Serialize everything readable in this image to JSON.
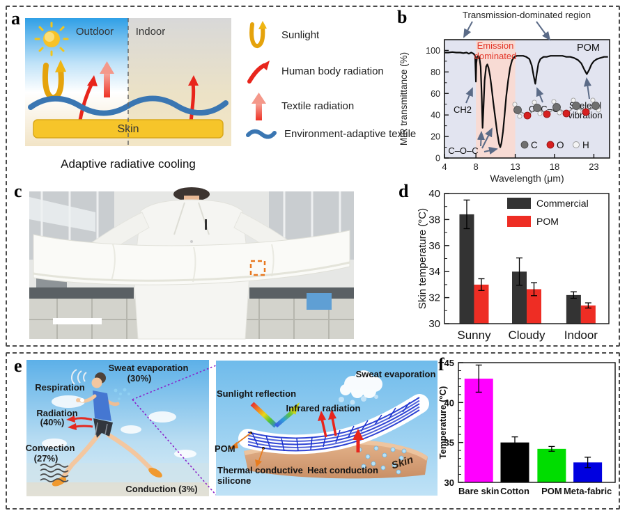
{
  "panels": {
    "a": "a",
    "b": "b",
    "c": "c",
    "d": "d",
    "e": "e",
    "f": "f"
  },
  "panel_a": {
    "outdoor": "Outdoor",
    "indoor": "Indoor",
    "skin": "Skin",
    "caption": "Adaptive radiative cooling",
    "legend": [
      {
        "label": "Sunlight",
        "icon": "sunlight-reflect-arrow"
      },
      {
        "label": "Human body radiation",
        "icon": "red-curved-arrow"
      },
      {
        "label": "Textile radiation",
        "icon": "pink-gradient-arrow"
      },
      {
        "label": "Environment-adaptive textile",
        "icon": "blue-wavy-line"
      }
    ]
  },
  "panel_b": {
    "transmission_region": "Transmission-dominated region",
    "emission_1": "Emission",
    "emission_2": "dominated",
    "pom": "POM",
    "ch2": "CH2",
    "coc": "C–O–C",
    "oco": "O–C–O",
    "skeletal_1": "Skeletal",
    "skeletal_2": "vibration",
    "atoms": {
      "c": "C",
      "o": "O",
      "h": "H"
    }
  },
  "panel_e": {
    "left": {
      "sweat": "Sweat evaporation",
      "sweat_pct": "(30%)",
      "respiration": "Respiration",
      "radiation": "Radiation",
      "radiation_pct": "(40%)",
      "convection": "Convection",
      "convection_pct": "(27%)",
      "conduction": "Conduction (3%)"
    },
    "right": {
      "sunlight_reflection": "Sunlight reflection",
      "infrared_radiation": "Infrared radiation",
      "sweat_evaporation": "Sweat evaporation",
      "pom": "POM",
      "silicone_1": "Thermal conductive",
      "silicone_2": "silicone",
      "heat_conduction": "Heat conduction",
      "skin": "Skin"
    }
  },
  "chart_data": [
    {
      "id": "mir-spectrum",
      "type": "line",
      "xlabel": "Wavelength (μm)",
      "ylabel": "MIR transmittance (%)",
      "xlim": [
        4,
        25
      ],
      "ylim": [
        0,
        110
      ],
      "xticks": [
        4,
        8,
        13,
        18,
        23
      ],
      "yticks": [
        0,
        20,
        40,
        60,
        80,
        100
      ],
      "shaded_region": {
        "x": [
          8,
          13
        ],
        "color": "#f8dbd4",
        "label": "Emission dominated"
      },
      "series": [
        {
          "name": "POM",
          "color": "#0b0b0b",
          "points": [
            [
              4,
              98
            ],
            [
              4.5,
              98
            ],
            [
              5,
              98.5
            ],
            [
              5.5,
              98
            ],
            [
              6,
              98
            ],
            [
              6.4,
              97.5
            ],
            [
              6.8,
              98
            ],
            [
              7.1,
              97
            ],
            [
              7.4,
              98
            ],
            [
              7.7,
              97
            ],
            [
              7.9,
              95
            ],
            [
              8,
              71
            ],
            [
              8.05,
              88
            ],
            [
              8.15,
              94
            ],
            [
              8.3,
              95
            ],
            [
              8.45,
              93
            ],
            [
              8.6,
              85
            ],
            [
              8.75,
              55
            ],
            [
              8.85,
              28
            ],
            [
              8.95,
              45
            ],
            [
              9.1,
              72
            ],
            [
              9.3,
              85
            ],
            [
              9.45,
              87
            ],
            [
              9.6,
              84
            ],
            [
              9.8,
              76
            ],
            [
              10,
              65
            ],
            [
              10.2,
              52
            ],
            [
              10.45,
              38
            ],
            [
              10.7,
              24
            ],
            [
              10.95,
              13
            ],
            [
              11.1,
              10
            ],
            [
              11.25,
              14
            ],
            [
              11.45,
              25
            ],
            [
              11.65,
              40
            ],
            [
              11.85,
              57
            ],
            [
              12.1,
              72
            ],
            [
              12.35,
              84
            ],
            [
              12.6,
              91
            ],
            [
              12.9,
              94
            ],
            [
              13.2,
              95
            ],
            [
              13.6,
              95
            ],
            [
              14,
              95
            ],
            [
              14.4,
              94
            ],
            [
              14.8,
              92
            ],
            [
              15.1,
              86
            ],
            [
              15.35,
              76
            ],
            [
              15.55,
              69
            ],
            [
              15.75,
              79
            ],
            [
              15.95,
              88
            ],
            [
              16.2,
              92
            ],
            [
              16.6,
              94
            ],
            [
              17,
              94
            ],
            [
              17.5,
              95
            ],
            [
              18,
              95
            ],
            [
              18.5,
              95
            ],
            [
              19,
              95
            ],
            [
              19.5,
              94
            ],
            [
              20,
              94
            ],
            [
              20.5,
              93
            ],
            [
              21,
              91
            ],
            [
              21.4,
              88
            ],
            [
              21.8,
              82
            ],
            [
              22.1,
              78
            ],
            [
              22.4,
              82
            ],
            [
              22.7,
              87
            ],
            [
              23,
              90
            ],
            [
              23.4,
              92
            ],
            [
              23.8,
              93
            ],
            [
              24.3,
              94
            ],
            [
              24.8,
              94
            ]
          ]
        }
      ]
    },
    {
      "id": "skin-temperature",
      "type": "bar",
      "ylabel": "Skin temperature (°C)",
      "ylim": [
        30,
        40
      ],
      "yticks": [
        30,
        32,
        34,
        36,
        38,
        40
      ],
      "categories": [
        "Sunny",
        "Cloudy",
        "Indoor"
      ],
      "legend_position": "upper right",
      "series": [
        {
          "name": "Commercial",
          "color": "#333333",
          "values": [
            38.4,
            34.0,
            32.2
          ],
          "errors": [
            1.1,
            1.05,
            0.25
          ]
        },
        {
          "name": "POM",
          "color": "#ee2d24",
          "values": [
            33.0,
            32.65,
            31.4
          ],
          "errors": [
            0.45,
            0.5,
            0.2
          ]
        }
      ]
    },
    {
      "id": "textile-comparison",
      "type": "bar",
      "ylabel": "Temperature (°C)",
      "ylim": [
        30,
        45
      ],
      "yticks": [
        30,
        35,
        40,
        45
      ],
      "categories": [
        "Bare skin",
        "Cotton",
        "POM",
        "Meta-fabric"
      ],
      "series": [
        {
          "name": "Temperature",
          "colors": [
            "#ff00ff",
            "#000000",
            "#00dd00",
            "#0000e0"
          ],
          "values": [
            43.0,
            35.0,
            34.2,
            32.5
          ],
          "errors": [
            1.7,
            0.7,
            0.3,
            0.65
          ]
        }
      ]
    }
  ]
}
